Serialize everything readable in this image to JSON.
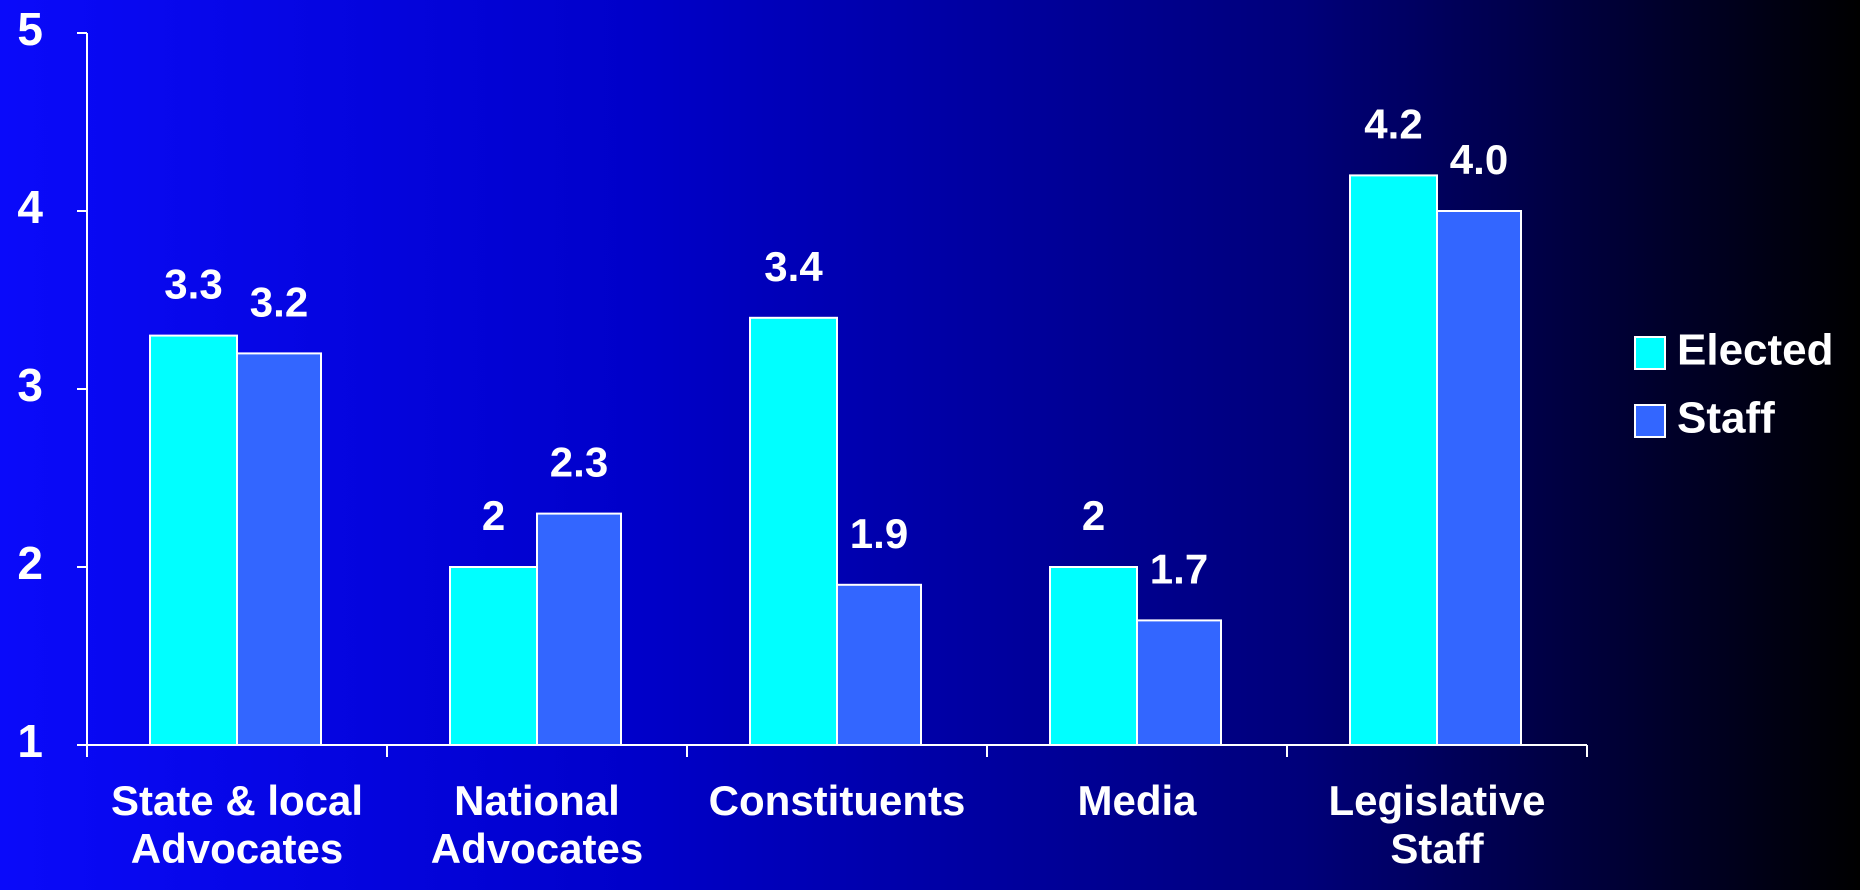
{
  "chart_data": {
    "type": "bar",
    "categories": [
      "State & local\nAdvocates",
      "National\nAdvocates",
      "Constituents",
      "Media",
      "Legislative\nStaff"
    ],
    "series": [
      {
        "name": "Elected",
        "color": "#00ffff",
        "values": [
          3.3,
          2,
          3.4,
          2,
          4.2
        ]
      },
      {
        "name": "Staff",
        "color": "#3366ff",
        "values": [
          3.2,
          2.3,
          1.9,
          1.7,
          4.0
        ],
        "value_labels": [
          "3.2",
          "2.3",
          "1.9",
          "1.7",
          "4.0"
        ]
      }
    ],
    "ylim": [
      1,
      5
    ],
    "yticks": [
      1,
      2,
      3,
      4,
      5
    ],
    "legend": "right"
  }
}
